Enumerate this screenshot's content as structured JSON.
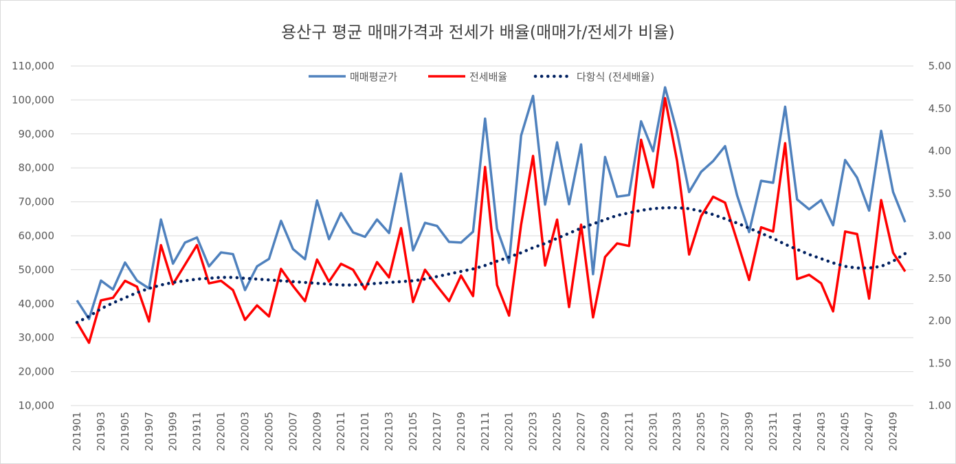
{
  "chart_data": {
    "type": "line",
    "title": "용산구 평균 매매가격과 전세가 배율(매매가/전세가 비율)",
    "xlabel": "",
    "ylabel": "",
    "y_left": {
      "lim": [
        10000,
        110000
      ],
      "ticks": [
        "10,000",
        "20,000",
        "30,000",
        "40,000",
        "50,000",
        "60,000",
        "70,000",
        "80,000",
        "90,000",
        "100,000",
        "110,000"
      ]
    },
    "y_right": {
      "lim": [
        1.0,
        5.0
      ],
      "ticks": [
        "1.00",
        "1.50",
        "2.00",
        "2.50",
        "3.00",
        "3.50",
        "4.00",
        "4.50",
        "5.00"
      ]
    },
    "x_tick_labels": [
      "201901",
      "201903",
      "201905",
      "201907",
      "201909",
      "201911",
      "202001",
      "202003",
      "202005",
      "202007",
      "202009",
      "202011",
      "202101",
      "202103",
      "202105",
      "202107",
      "202109",
      "202111",
      "202201",
      "202203",
      "202205",
      "202207",
      "202209",
      "202211",
      "202301",
      "202303",
      "202305",
      "202307",
      "202309",
      "202311",
      "202401",
      "202403",
      "202405",
      "202407",
      "202409"
    ],
    "legend_position": "top",
    "grid": "horizontal",
    "series": [
      {
        "name": "매매평균가",
        "axis": "left",
        "color": "#4f81bd",
        "values": [
          41000,
          35500,
          46800,
          44200,
          52100,
          46800,
          44500,
          64800,
          51800,
          58000,
          59500,
          51000,
          55100,
          54600,
          44000,
          51000,
          53200,
          64400,
          56100,
          53100,
          70400,
          59000,
          66700,
          61000,
          59700,
          64800,
          60800,
          78300,
          55700,
          63800,
          62900,
          58200,
          58000,
          61200,
          94500,
          62000,
          52000,
          89500,
          101200,
          69200,
          87500,
          69300,
          86900,
          48700,
          83200,
          71500,
          72000,
          93700,
          84900,
          103700,
          90500,
          72900,
          78800,
          82000,
          86400,
          71900,
          61100,
          76200,
          75600,
          98000,
          70700,
          67800,
          70500,
          63100,
          82300,
          77100,
          67400,
          90900,
          72900,
          64000
        ]
      },
      {
        "name": "전세배율",
        "axis": "right",
        "color": "#ff0000",
        "values": [
          1.98,
          1.74,
          2.24,
          2.27,
          2.47,
          2.4,
          1.99,
          2.89,
          2.43,
          2.66,
          2.89,
          2.44,
          2.47,
          2.36,
          2.01,
          2.18,
          2.05,
          2.61,
          2.41,
          2.23,
          2.72,
          2.46,
          2.67,
          2.6,
          2.37,
          2.69,
          2.51,
          3.09,
          2.22,
          2.6,
          2.41,
          2.23,
          2.53,
          2.29,
          3.81,
          2.42,
          2.06,
          3.13,
          3.94,
          2.65,
          3.19,
          2.16,
          3.13,
          2.04,
          2.75,
          2.91,
          2.88,
          4.13,
          3.57,
          4.62,
          3.88,
          2.78,
          3.23,
          3.46,
          3.39,
          2.94,
          2.48,
          3.1,
          3.05,
          4.09,
          2.49,
          2.54,
          2.44,
          2.11,
          3.05,
          3.02,
          2.26,
          3.42,
          2.8,
          2.58
        ]
      },
      {
        "name": "다항식 (전세배율)",
        "axis": "right",
        "color": "#002060",
        "style": "dotted",
        "values": [
          1.98,
          2.05,
          2.14,
          2.21,
          2.27,
          2.33,
          2.38,
          2.42,
          2.45,
          2.47,
          2.49,
          2.5,
          2.51,
          2.51,
          2.5,
          2.49,
          2.48,
          2.47,
          2.46,
          2.45,
          2.44,
          2.43,
          2.42,
          2.42,
          2.43,
          2.44,
          2.45,
          2.46,
          2.47,
          2.49,
          2.52,
          2.55,
          2.58,
          2.61,
          2.65,
          2.7,
          2.75,
          2.8,
          2.86,
          2.91,
          2.97,
          3.03,
          3.09,
          3.14,
          3.19,
          3.24,
          3.27,
          3.3,
          3.32,
          3.33,
          3.33,
          3.32,
          3.29,
          3.25,
          3.2,
          3.15,
          3.09,
          3.03,
          2.97,
          2.9,
          2.84,
          2.78,
          2.73,
          2.68,
          2.64,
          2.62,
          2.62,
          2.64,
          2.7,
          2.79
        ]
      }
    ]
  }
}
